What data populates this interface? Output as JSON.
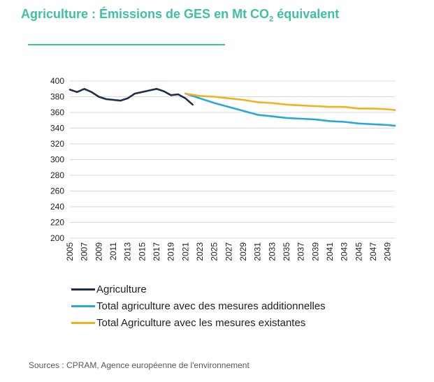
{
  "title": {
    "prefix": "Agriculture : Émissions de GES en Mt CO",
    "subscript": "2",
    "suffix": " équivalent"
  },
  "source": "Sources : CPRAM, Agence européenne de l'environnement",
  "colors": {
    "title": "#3fbfa3",
    "agriculture": "#1f2d4d",
    "additional": "#29a6dc",
    "existing": "#f2b11f"
  },
  "chart_data": {
    "type": "line",
    "title": "",
    "xlabel": "",
    "ylabel": "",
    "ylim": [
      200,
      400
    ],
    "xlim": [
      2005,
      2050
    ],
    "y_ticks": [
      "200",
      "220",
      "240",
      "260",
      "280",
      "300",
      "320",
      "340",
      "360",
      "380",
      "400"
    ],
    "x_ticks": [
      "2005",
      "2007",
      "2009",
      "2011",
      "2013",
      "2015",
      "2017",
      "2019",
      "2021",
      "2023",
      "2025",
      "2027",
      "2029",
      "2031",
      "2033",
      "2035",
      "2037",
      "2039",
      "2041",
      "2043",
      "2045",
      "2047",
      "2049"
    ],
    "grid": "horizontal",
    "legend_position": "bottom-left",
    "series": [
      {
        "name": "Agriculture",
        "color_key": "agriculture",
        "x": [
          2005,
          2006,
          2007,
          2008,
          2009,
          2010,
          2011,
          2012,
          2013,
          2014,
          2015,
          2016,
          2017,
          2018,
          2019,
          2020,
          2021,
          2022
        ],
        "y": [
          389,
          386,
          390,
          386,
          380,
          377,
          376,
          375,
          378,
          384,
          386,
          388,
          390,
          387,
          382,
          383,
          378,
          370
        ]
      },
      {
        "name": "Total agriculture avec des mesures additionnelles",
        "color_key": "additional",
        "x": [
          2021,
          2023,
          2025,
          2027,
          2029,
          2031,
          2033,
          2035,
          2037,
          2039,
          2041,
          2043,
          2045,
          2047,
          2049,
          2050
        ],
        "y": [
          384,
          378,
          372,
          367,
          362,
          357,
          355,
          353,
          352,
          351,
          349,
          348,
          346,
          345,
          344,
          343
        ]
      },
      {
        "name": "Total Agriculture avec les mesures existantes",
        "color_key": "existing",
        "x": [
          2021,
          2023,
          2025,
          2027,
          2029,
          2031,
          2033,
          2035,
          2037,
          2039,
          2041,
          2043,
          2045,
          2047,
          2049,
          2050
        ],
        "y": [
          384,
          381,
          380,
          378,
          376,
          373,
          372,
          370,
          369,
          368,
          367,
          367,
          365,
          365,
          364,
          363
        ]
      }
    ]
  }
}
